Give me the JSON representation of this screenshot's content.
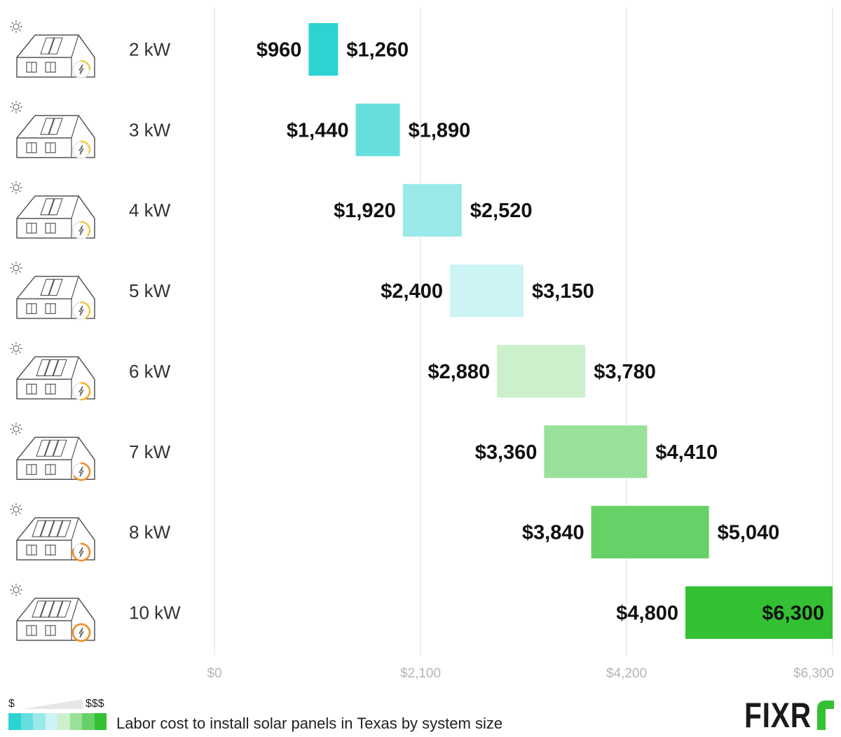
{
  "chart_data": {
    "type": "bar",
    "subtype": "floating-range",
    "title": "Labor cost to install solar panels in Texas by system size",
    "categories": [
      "2 kW",
      "3 kW",
      "4 kW",
      "5 kW",
      "6 kW",
      "7 kW",
      "8 kW",
      "10  kW"
    ],
    "series": [
      {
        "name": "Low",
        "values": [
          960,
          1440,
          1920,
          2400,
          2880,
          3360,
          3840,
          4800
        ]
      },
      {
        "name": "High",
        "values": [
          1260,
          1890,
          2520,
          3150,
          3780,
          4410,
          5040,
          6300
        ]
      }
    ],
    "value_labels_low": [
      "$960",
      "$1,440",
      "$1,920",
      "$2,400",
      "$2,880",
      "$3,360",
      "$3,840",
      "$4,800"
    ],
    "value_labels_high": [
      "$1,260",
      "$1,890",
      "$2,520",
      "$3,150",
      "$3,780",
      "$4,410",
      "$5,040",
      "$6,300"
    ],
    "bar_colors": [
      "#2dd3d3",
      "#66dede",
      "#99e9e9",
      "#ccf4f4",
      "#ccefcc",
      "#99e199",
      "#66d166",
      "#33c133"
    ],
    "xlim": [
      0,
      6300
    ],
    "xticks": [
      0,
      2100,
      4200,
      6300
    ],
    "xtick_labels": [
      "$0",
      "$2,100",
      "$4,200",
      "$6,300"
    ],
    "grid": true,
    "panel_counts": [
      2,
      2,
      2,
      2,
      3,
      3,
      4,
      4
    ],
    "meter_levels": [
      0.25,
      0.3,
      0.35,
      0.4,
      0.5,
      0.65,
      0.8,
      1.0
    ]
  },
  "legend": {
    "low_label": "$",
    "high_label": "$$$",
    "colors": [
      "#2dd3d3",
      "#66dede",
      "#99e9e9",
      "#ccf4f4",
      "#ccefcc",
      "#99e199",
      "#66d166",
      "#33c133"
    ]
  },
  "caption": "Labor cost to install solar panels in Texas by system size",
  "brand": "FIXR"
}
